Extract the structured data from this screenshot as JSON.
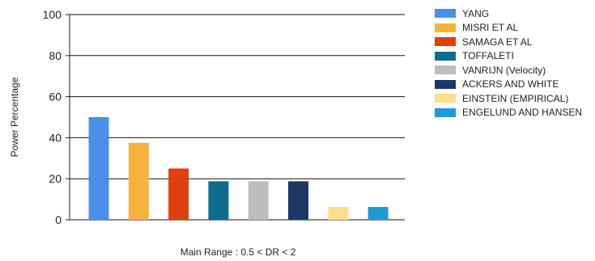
{
  "chart_data": {
    "type": "bar",
    "categories": [
      "YANG",
      "MISRI ET AL",
      "SAMAGA ET AL",
      "TOFFALETI",
      "VANRIJN (Velocity)",
      "ACKERS AND WHITE",
      "EINSTEIN (EMPIRICAL)",
      "ENGELUND AND HANSEN"
    ],
    "values": [
      50,
      37.5,
      25,
      18.75,
      18.75,
      18.75,
      6.25,
      6.25
    ],
    "colors": [
      "#4a8fe7",
      "#f7b23b",
      "#e0400f",
      "#0f6b8f",
      "#bdbdbd",
      "#1c3766",
      "#fbe08c",
      "#1e9ad6"
    ],
    "xlabel": "Main Range : 0.5  <  DR  <  2",
    "ylabel": "Power Percentage",
    "ylim": [
      0,
      100
    ],
    "yticks": [
      0,
      20,
      40,
      60,
      80,
      100
    ],
    "grid": "horizontal",
    "legend_position": "right"
  }
}
